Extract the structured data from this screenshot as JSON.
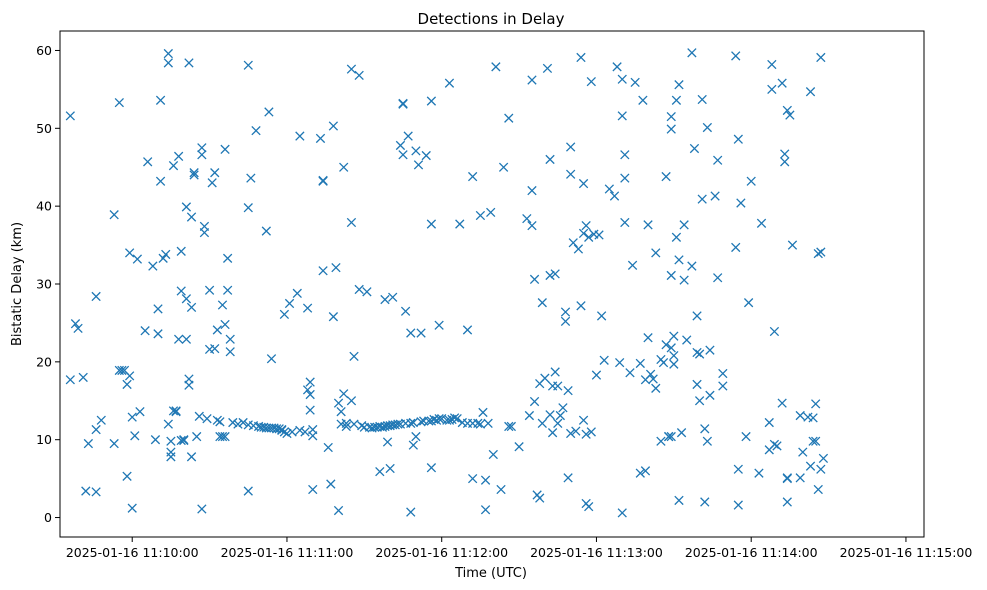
{
  "chart_data": {
    "type": "scatter",
    "title": "Detections in Delay",
    "xlabel": "Time (UTC)",
    "ylabel": "Bistatic Delay (km)",
    "marker": "x",
    "color": "#1f77b4",
    "grid": false,
    "legend": false,
    "xlim": [
      "2025-01-16 11:09:32",
      "2025-01-16 11:15:07"
    ],
    "ylim": [
      -2.5,
      62.5
    ],
    "xticks": [
      "2025-01-16 11:10:00",
      "2025-01-16 11:11:00",
      "2025-01-16 11:12:00",
      "2025-01-16 11:13:00",
      "2025-01-16 11:14:00",
      "2025-01-16 11:15:00"
    ],
    "yticks": [
      0,
      10,
      20,
      30,
      40,
      50,
      60
    ],
    "x_time_offset": "2025-01-16 11:10:00",
    "points_seconds_after_offset": [
      [
        -24,
        51.6
      ],
      [
        -24,
        17.7
      ],
      [
        -22,
        24.9
      ],
      [
        -21,
        24.3
      ],
      [
        -19,
        18.0
      ],
      [
        -18,
        3.4
      ],
      [
        -17,
        9.5
      ],
      [
        -14,
        28.4
      ],
      [
        -14,
        3.3
      ],
      [
        -14,
        11.3
      ],
      [
        -12,
        12.5
      ],
      [
        -7,
        38.9
      ],
      [
        -7,
        9.5
      ],
      [
        -5,
        53.3
      ],
      [
        -5,
        18.9
      ],
      [
        -4,
        18.9
      ],
      [
        -3,
        18.9
      ],
      [
        -2,
        17.1
      ],
      [
        -2,
        5.3
      ],
      [
        -1,
        34.0
      ],
      [
        -1,
        18.2
      ],
      [
        0,
        1.2
      ],
      [
        0,
        12.9
      ],
      [
        1,
        10.5
      ],
      [
        2,
        33.2
      ],
      [
        3,
        13.6
      ],
      [
        5,
        24.0
      ],
      [
        6,
        45.7
      ],
      [
        8,
        32.3
      ],
      [
        9,
        10.0
      ],
      [
        10,
        26.8
      ],
      [
        10,
        23.6
      ],
      [
        11,
        53.6
      ],
      [
        11,
        43.2
      ],
      [
        12,
        33.3
      ],
      [
        13,
        33.8
      ],
      [
        14,
        59.6
      ],
      [
        14,
        58.4
      ],
      [
        14,
        12.0
      ],
      [
        15,
        9.8
      ],
      [
        15,
        8.4
      ],
      [
        15,
        7.8
      ],
      [
        16,
        13.7
      ],
      [
        16,
        45.2
      ],
      [
        17,
        13.7
      ],
      [
        17,
        13.6
      ],
      [
        18,
        22.9
      ],
      [
        18,
        46.4
      ],
      [
        19,
        29.1
      ],
      [
        19,
        34.2
      ],
      [
        19,
        9.9
      ],
      [
        20,
        9.9
      ],
      [
        20,
        10.0
      ],
      [
        21,
        22.9
      ],
      [
        21,
        39.9
      ],
      [
        21,
        28.1
      ],
      [
        22,
        17.0
      ],
      [
        22,
        17.8
      ],
      [
        22,
        58.4
      ],
      [
        23,
        27.0
      ],
      [
        23,
        38.6
      ],
      [
        23,
        7.8
      ],
      [
        24,
        44.3
      ],
      [
        24,
        44.0
      ],
      [
        25,
        10.4
      ],
      [
        26,
        13.0
      ],
      [
        27,
        47.5
      ],
      [
        27,
        46.6
      ],
      [
        27,
        1.1
      ],
      [
        28,
        37.4
      ],
      [
        28,
        36.6
      ],
      [
        29,
        12.7
      ],
      [
        30,
        29.2
      ],
      [
        30,
        21.6
      ],
      [
        31,
        43.0
      ],
      [
        32,
        44.3
      ],
      [
        32,
        21.7
      ],
      [
        33,
        12.5
      ],
      [
        33,
        24.1
      ],
      [
        34,
        12.3
      ],
      [
        34,
        10.4
      ],
      [
        35,
        27.3
      ],
      [
        35,
        10.4
      ],
      [
        36,
        47.3
      ],
      [
        36,
        24.8
      ],
      [
        36,
        10.4
      ],
      [
        37,
        33.3
      ],
      [
        37,
        29.2
      ],
      [
        38,
        21.3
      ],
      [
        38,
        22.9
      ],
      [
        39,
        12.2
      ],
      [
        41,
        12.0
      ],
      [
        43,
        12.2
      ],
      [
        45,
        3.4
      ],
      [
        45,
        39.8
      ],
      [
        45,
        11.9
      ],
      [
        45,
        58.1
      ],
      [
        46,
        43.6
      ],
      [
        47,
        11.8
      ],
      [
        48,
        49.7
      ],
      [
        49,
        11.7
      ],
      [
        50,
        11.6
      ],
      [
        51,
        11.6
      ],
      [
        52,
        11.5
      ],
      [
        52,
        36.8
      ],
      [
        53,
        11.5
      ],
      [
        53,
        52.1
      ],
      [
        54,
        11.5
      ],
      [
        54,
        20.4
      ],
      [
        55,
        11.5
      ],
      [
        56,
        11.4
      ],
      [
        57,
        11.4
      ],
      [
        58,
        11.3
      ],
      [
        58,
        11.2
      ],
      [
        59,
        11.0
      ],
      [
        59,
        26.1
      ],
      [
        60,
        10.8
      ],
      [
        61,
        27.5
      ],
      [
        62,
        11.0
      ],
      [
        64,
        28.8
      ],
      [
        65,
        11.2
      ],
      [
        65,
        49.0
      ],
      [
        67,
        11.0
      ],
      [
        68,
        26.9
      ],
      [
        68,
        16.4
      ],
      [
        69,
        17.4
      ],
      [
        69,
        15.8
      ],
      [
        69,
        13.8
      ],
      [
        70,
        11.3
      ],
      [
        70,
        10.5
      ],
      [
        70,
        3.6
      ],
      [
        73,
        48.7
      ],
      [
        74,
        31.7
      ],
      [
        74,
        43.3
      ],
      [
        74,
        43.2
      ],
      [
        76,
        9.0
      ],
      [
        77,
        4.3
      ],
      [
        78,
        25.8
      ],
      [
        78,
        50.3
      ],
      [
        79,
        32.1
      ],
      [
        80,
        0.9
      ],
      [
        80,
        14.7
      ],
      [
        81,
        13.6
      ],
      [
        81,
        12.0
      ],
      [
        82,
        45.0
      ],
      [
        82,
        15.9
      ],
      [
        83,
        11.7
      ],
      [
        83,
        12.1
      ],
      [
        85,
        57.6
      ],
      [
        85,
        37.9
      ],
      [
        85,
        15.0
      ],
      [
        86,
        20.7
      ],
      [
        86,
        12.0
      ],
      [
        88,
        56.8
      ],
      [
        88,
        29.3
      ],
      [
        89,
        11.8
      ],
      [
        90,
        11.6
      ],
      [
        91,
        29.0
      ],
      [
        92,
        11.6
      ],
      [
        93,
        11.5
      ],
      [
        94,
        11.6
      ],
      [
        95,
        11.6
      ],
      [
        96,
        5.9
      ],
      [
        96,
        11.7
      ],
      [
        97,
        11.6
      ],
      [
        98,
        28.0
      ],
      [
        98,
        11.7
      ],
      [
        99,
        9.7
      ],
      [
        99,
        11.8
      ],
      [
        100,
        6.3
      ],
      [
        100,
        11.8
      ],
      [
        101,
        28.3
      ],
      [
        101,
        11.9
      ],
      [
        102,
        11.9
      ],
      [
        103,
        12.0
      ],
      [
        104,
        47.8
      ],
      [
        104,
        12.0
      ],
      [
        105,
        46.6
      ],
      [
        105,
        53.2
      ],
      [
        105,
        53.1
      ],
      [
        106,
        26.5
      ],
      [
        106,
        12.1
      ],
      [
        107,
        49.0
      ],
      [
        108,
        12.1
      ],
      [
        108,
        0.7
      ],
      [
        108,
        23.7
      ],
      [
        109,
        9.3
      ],
      [
        109,
        12.2
      ],
      [
        110,
        10.4
      ],
      [
        110,
        47.1
      ],
      [
        111,
        45.3
      ],
      [
        112,
        12.3
      ],
      [
        112,
        23.7
      ],
      [
        113,
        12.4
      ],
      [
        114,
        46.5
      ],
      [
        115,
        12.4
      ],
      [
        116,
        53.5
      ],
      [
        116,
        37.7
      ],
      [
        116,
        12.4
      ],
      [
        116,
        6.4
      ],
      [
        117,
        12.6
      ],
      [
        118,
        12.5
      ],
      [
        119,
        24.7
      ],
      [
        119,
        12.7
      ],
      [
        120,
        12.7
      ],
      [
        122,
        12.5
      ],
      [
        123,
        55.8
      ],
      [
        123,
        12.5
      ],
      [
        124,
        12.6
      ],
      [
        125,
        12.8
      ],
      [
        126,
        12.7
      ],
      [
        127,
        37.7
      ],
      [
        128,
        12.2
      ],
      [
        130,
        24.1
      ],
      [
        130,
        12.1
      ],
      [
        132,
        43.8
      ],
      [
        132,
        5.0
      ],
      [
        132,
        12.1
      ],
      [
        134,
        12.1
      ],
      [
        135,
        12.0
      ],
      [
        135,
        38.8
      ],
      [
        136,
        13.5
      ],
      [
        137,
        1.0
      ],
      [
        137,
        4.8
      ],
      [
        138,
        12.1
      ],
      [
        139,
        39.2
      ],
      [
        140,
        8.1
      ],
      [
        141,
        57.9
      ],
      [
        143,
        3.6
      ],
      [
        144,
        45.0
      ],
      [
        146,
        11.7
      ],
      [
        146,
        51.3
      ],
      [
        147,
        11.7
      ],
      [
        150,
        9.1
      ],
      [
        153,
        38.4
      ],
      [
        154,
        13.1
      ],
      [
        155,
        56.2
      ],
      [
        155,
        42.0
      ],
      [
        155,
        37.5
      ],
      [
        156,
        14.9
      ],
      [
        156,
        30.6
      ],
      [
        157,
        2.9
      ],
      [
        158,
        2.5
      ],
      [
        158,
        17.2
      ],
      [
        159,
        27.6
      ],
      [
        159,
        12.1
      ],
      [
        160,
        17.9
      ],
      [
        161,
        57.7
      ],
      [
        162,
        31.1
      ],
      [
        162,
        46.0
      ],
      [
        162,
        13.2
      ],
      [
        163,
        16.9
      ],
      [
        163,
        10.9
      ],
      [
        164,
        18.7
      ],
      [
        164,
        31.3
      ],
      [
        165,
        16.9
      ],
      [
        165,
        12.1
      ],
      [
        166,
        13.1
      ],
      [
        167,
        14.1
      ],
      [
        168,
        26.4
      ],
      [
        168,
        25.2
      ],
      [
        169,
        5.1
      ],
      [
        169,
        16.3
      ],
      [
        170,
        47.6
      ],
      [
        170,
        44.1
      ],
      [
        170,
        10.8
      ],
      [
        171,
        35.3
      ],
      [
        172,
        11.1
      ],
      [
        173,
        34.5
      ],
      [
        174,
        59.1
      ],
      [
        174,
        27.2
      ],
      [
        175,
        42.9
      ],
      [
        175,
        36.5
      ],
      [
        175,
        12.5
      ],
      [
        176,
        37.5
      ],
      [
        176,
        10.7
      ],
      [
        176,
        1.8
      ],
      [
        177,
        1.4
      ],
      [
        177,
        36.0
      ],
      [
        178,
        56.0
      ],
      [
        178,
        11.0
      ],
      [
        179,
        36.4
      ],
      [
        180,
        18.3
      ],
      [
        181,
        36.3
      ],
      [
        182,
        25.9
      ],
      [
        183,
        20.2
      ],
      [
        185,
        42.2
      ],
      [
        187,
        41.3
      ],
      [
        188,
        57.9
      ],
      [
        189,
        19.9
      ],
      [
        190,
        56.3
      ],
      [
        190,
        51.6
      ],
      [
        190,
        0.6
      ],
      [
        191,
        43.6
      ],
      [
        191,
        46.6
      ],
      [
        191,
        37.9
      ],
      [
        193,
        18.6
      ],
      [
        194,
        32.4
      ],
      [
        195,
        55.9
      ],
      [
        197,
        5.7
      ],
      [
        197,
        19.8
      ],
      [
        198,
        53.6
      ],
      [
        199,
        6.0
      ],
      [
        199,
        17.7
      ],
      [
        200,
        23.1
      ],
      [
        200,
        37.6
      ],
      [
        201,
        18.4
      ],
      [
        202,
        17.8
      ],
      [
        203,
        16.6
      ],
      [
        203,
        34.0
      ],
      [
        205,
        20.3
      ],
      [
        205,
        9.8
      ],
      [
        206,
        19.9
      ],
      [
        207,
        22.2
      ],
      [
        207,
        43.8
      ],
      [
        208,
        10.4
      ],
      [
        208,
        10.4
      ],
      [
        209,
        31.1
      ],
      [
        209,
        21.8
      ],
      [
        209,
        51.5
      ],
      [
        209,
        49.9
      ],
      [
        209,
        10.4
      ],
      [
        210,
        20.8
      ],
      [
        210,
        23.3
      ],
      [
        210,
        19.7
      ],
      [
        211,
        53.6
      ],
      [
        211,
        36.0
      ],
      [
        212,
        2.2
      ],
      [
        212,
        55.6
      ],
      [
        212,
        33.1
      ],
      [
        213,
        10.9
      ],
      [
        214,
        37.6
      ],
      [
        214,
        30.5
      ],
      [
        215,
        22.8
      ],
      [
        217,
        32.3
      ],
      [
        217,
        59.7
      ],
      [
        218,
        47.4
      ],
      [
        219,
        21.2
      ],
      [
        219,
        17.1
      ],
      [
        219,
        25.9
      ],
      [
        220,
        15.0
      ],
      [
        220,
        21.0
      ],
      [
        221,
        53.7
      ],
      [
        221,
        40.9
      ],
      [
        222,
        11.4
      ],
      [
        222,
        2.0
      ],
      [
        223,
        9.8
      ],
      [
        223,
        50.1
      ],
      [
        224,
        15.7
      ],
      [
        224,
        21.5
      ],
      [
        226,
        41.3
      ],
      [
        227,
        45.9
      ],
      [
        227,
        30.8
      ],
      [
        229,
        16.9
      ],
      [
        229,
        18.5
      ],
      [
        234,
        34.7
      ],
      [
        234,
        59.3
      ],
      [
        235,
        6.2
      ],
      [
        235,
        48.6
      ],
      [
        235,
        1.6
      ],
      [
        236,
        40.4
      ],
      [
        238,
        10.4
      ],
      [
        239,
        27.6
      ],
      [
        240,
        43.2
      ],
      [
        243,
        5.7
      ],
      [
        244,
        37.8
      ],
      [
        247,
        8.7
      ],
      [
        247,
        12.2
      ],
      [
        248,
        55.0
      ],
      [
        248,
        58.2
      ],
      [
        249,
        23.9
      ],
      [
        249,
        9.4
      ],
      [
        250,
        9.2
      ],
      [
        252,
        55.8
      ],
      [
        252,
        14.7
      ],
      [
        253,
        45.7
      ],
      [
        253,
        46.7
      ],
      [
        254,
        52.3
      ],
      [
        254,
        5.1
      ],
      [
        254,
        5.0
      ],
      [
        254,
        2.0
      ],
      [
        255,
        51.7
      ],
      [
        256,
        35.0
      ],
      [
        259,
        5.1
      ],
      [
        259,
        13.1
      ],
      [
        260,
        8.4
      ],
      [
        262,
        12.9
      ],
      [
        263,
        6.6
      ],
      [
        263,
        54.7
      ],
      [
        264,
        9.8
      ],
      [
        264,
        12.8
      ],
      [
        265,
        9.8
      ],
      [
        265,
        14.6
      ],
      [
        266,
        33.9
      ],
      [
        266,
        3.6
      ],
      [
        267,
        59.1
      ],
      [
        267,
        34.1
      ],
      [
        267,
        6.2
      ],
      [
        268,
        7.6
      ]
    ]
  }
}
